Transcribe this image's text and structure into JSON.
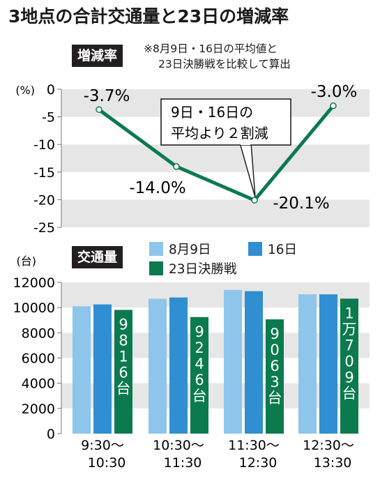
{
  "title": "3地点の合計交通量と23日の増減率",
  "rate_section": {
    "label": "増減率",
    "note_line1": "※8月9日・16日の平均値と",
    "note_line2": "23日決勝戦を比較して算出",
    "unit": "(%)",
    "callout_line1": "9日・16日の",
    "callout_line2": "平均より２割減"
  },
  "volume_section": {
    "label": "交通量",
    "unit": "(台)"
  },
  "colors": {
    "aug9": "#8ec5ea",
    "aug16": "#2f8fd0",
    "aug23": "#0b7a4e",
    "line": "#0b7a4e",
    "grid_band": "#e6e6e6",
    "label_bg": "#231f20"
  },
  "chart_data": [
    {
      "type": "line",
      "categories": [
        "9:30〜10:30",
        "10:30〜11:30",
        "11:30〜12:30",
        "12:30〜13:30"
      ],
      "values": [
        -3.7,
        -14.0,
        -20.1,
        -3.0
      ],
      "data_labels": [
        "-3.7%",
        "-14.0%",
        "-20.1%",
        "-3.0%"
      ],
      "ylim": [
        -25,
        0
      ],
      "yticks": [
        "0",
        "-5",
        "-10",
        "-15",
        "-20",
        "-25"
      ],
      "ytick_values": [
        0,
        -5,
        -10,
        -15,
        -20,
        -25
      ],
      "ylabel": "(%)",
      "grid": "horizontal bands"
    },
    {
      "type": "bar",
      "categories": [
        "9:30〜10:30",
        "10:30〜11:30",
        "11:30〜12:30",
        "12:30〜13:30"
      ],
      "category_lines": [
        [
          "9:30〜",
          "10:30"
        ],
        [
          "10:30〜",
          "11:30"
        ],
        [
          "11:30〜",
          "12:30"
        ],
        [
          "12:30〜",
          "13:30"
        ]
      ],
      "series": [
        {
          "name": "8月9日",
          "values": [
            10100,
            10700,
            11400,
            11050
          ]
        },
        {
          "name": "16日",
          "values": [
            10250,
            10800,
            11300,
            11050
          ]
        },
        {
          "name": "23日決勝戦",
          "values": [
            9816,
            9246,
            9063,
            10709
          ],
          "data_labels": [
            "9816台",
            "9246台",
            "9063台",
            "1万709台"
          ]
        }
      ],
      "ylim": [
        0,
        12000
      ],
      "yticks": [
        "12000",
        "10000",
        "8000",
        "6000",
        "4000",
        "2000",
        "0"
      ],
      "ytick_values": [
        12000,
        10000,
        8000,
        6000,
        4000,
        2000,
        0
      ],
      "ylabel": "(台)",
      "legend": "top-right"
    }
  ]
}
